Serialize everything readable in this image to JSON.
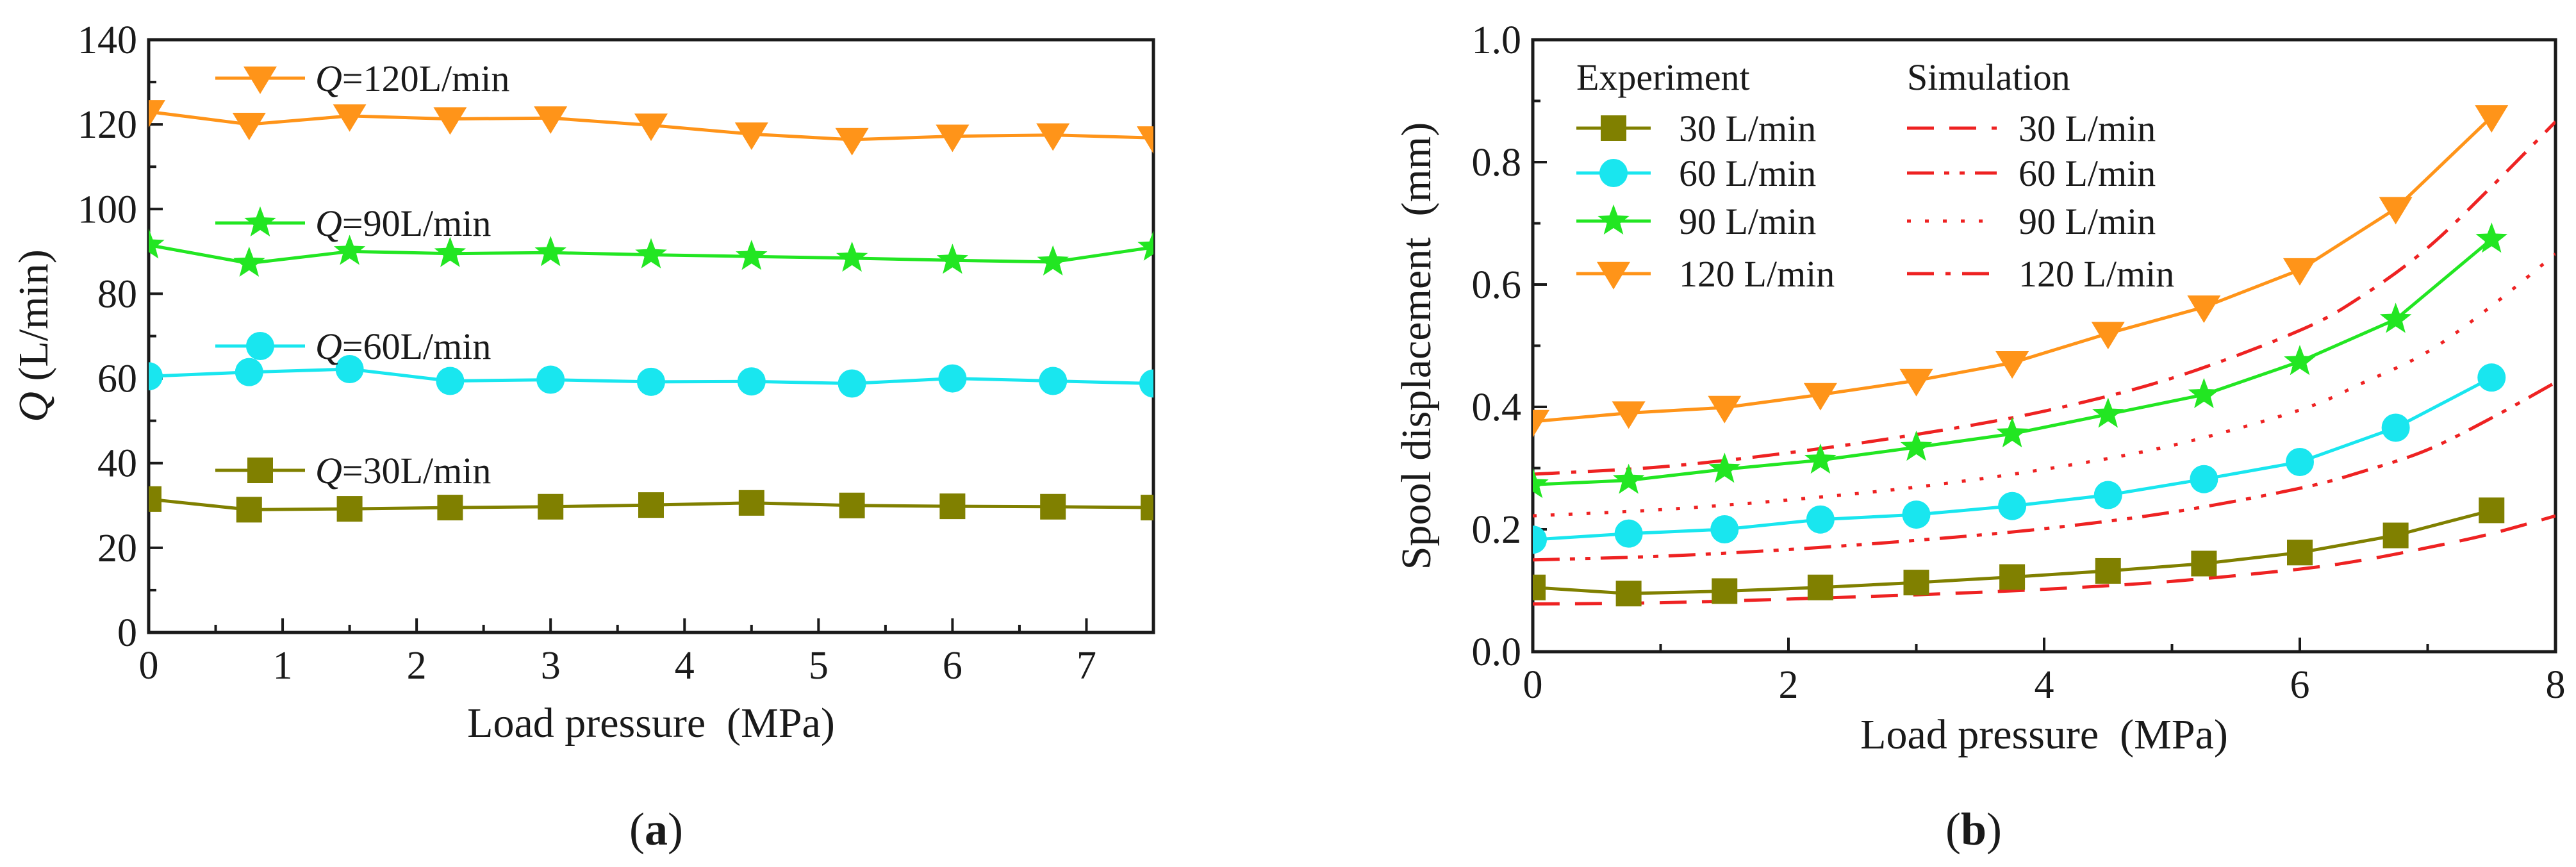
{
  "panel_labels": {
    "a": {
      "open": "(",
      "letter": "a",
      "close": ")"
    },
    "b": {
      "open": "(",
      "letter": "b",
      "close": ")"
    }
  },
  "colors": {
    "q30": "#808000",
    "q60": "#19e6ef",
    "q90": "#22e622",
    "q120": "#ff9419",
    "sim": "#ee2222",
    "axis": "#1a1a1a"
  },
  "chart_data": [
    {
      "id": "a",
      "type": "line",
      "title": "",
      "xlabel": "Load pressure (MPa)",
      "ylabel_italic": "Q",
      "ylabel_rest": " (L/min)",
      "xlim": [
        0,
        7.5
      ],
      "ylim": [
        0,
        140
      ],
      "xticks": [
        0,
        1,
        2,
        3,
        4,
        5,
        6,
        7
      ],
      "yticks": [
        0,
        20,
        40,
        60,
        80,
        100,
        120,
        140
      ],
      "minor_xticks": [
        0.5,
        1.5,
        2.5,
        3.5,
        4.5,
        5.5,
        6.5
      ],
      "minor_yticks": [
        10,
        30,
        50,
        70,
        90,
        110,
        130
      ],
      "series": [
        {
          "key": "q120",
          "name_italic": "Q",
          "name_rest": "=120L/min",
          "marker": "tri-down",
          "color_key": "q120",
          "x": [
            0,
            0.75,
            1.5,
            2.25,
            3,
            3.75,
            4.5,
            5.25,
            6,
            6.75,
            7.5
          ],
          "y": [
            123,
            120,
            122,
            121.3,
            121.5,
            119.8,
            117.7,
            116.4,
            117.2,
            117.5,
            116.8
          ]
        },
        {
          "key": "q90",
          "name_italic": "Q",
          "name_rest": "=90L/min",
          "marker": "star",
          "color_key": "q90",
          "x": [
            0,
            0.75,
            1.5,
            2.25,
            3,
            3.75,
            4.5,
            5.25,
            6,
            6.75,
            7.5
          ],
          "y": [
            91.5,
            87.2,
            90,
            89.5,
            89.7,
            89.2,
            88.8,
            88.4,
            87.9,
            87.5,
            91
          ]
        },
        {
          "key": "q60",
          "name_italic": "Q",
          "name_rest": "=60L/min",
          "marker": "circle",
          "color_key": "q60",
          "x": [
            0,
            0.75,
            1.5,
            2.25,
            3,
            3.75,
            4.5,
            5.25,
            6,
            6.75,
            7.5
          ],
          "y": [
            60.5,
            61.5,
            62.2,
            59.4,
            59.7,
            59.2,
            59.3,
            58.8,
            60,
            59.4,
            58.8
          ]
        },
        {
          "key": "q30",
          "name_italic": "Q",
          "name_rest": "=30L/min",
          "marker": "square",
          "color_key": "q30",
          "x": [
            0,
            0.75,
            1.5,
            2.25,
            3,
            3.75,
            4.5,
            5.25,
            6,
            6.75,
            7.5
          ],
          "y": [
            31.5,
            29,
            29.2,
            29.5,
            29.7,
            30.1,
            30.6,
            30,
            29.8,
            29.7,
            29.5
          ]
        }
      ]
    },
    {
      "id": "b",
      "type": "line",
      "title": "",
      "xlabel": "Load pressure (MPa)",
      "ylabel": "Spool displacement (mm)",
      "xlim": [
        0,
        8
      ],
      "ylim": [
        0,
        1.0
      ],
      "xticks": [
        0,
        2,
        4,
        6,
        8
      ],
      "xtick_labels": [
        "0",
        "2",
        "4",
        "6",
        "8"
      ],
      "yticks": [
        0,
        0.2,
        0.4,
        0.6,
        0.8,
        1.0
      ],
      "ytick_labels": [
        "0.0",
        "0.2",
        "0.4",
        "0.6",
        "0.8",
        "1.0"
      ],
      "minor_xticks": [
        1,
        3,
        5,
        7
      ],
      "minor_yticks": [
        0.1,
        0.3,
        0.5,
        0.7,
        0.9
      ],
      "legend_titles": {
        "experiment": "Experiment",
        "simulation": "Simulation"
      },
      "experiment": [
        {
          "key": "e30",
          "name": "30 L/min",
          "marker": "square",
          "color_key": "q30",
          "x": [
            0,
            0.75,
            1.5,
            2.25,
            3,
            3.75,
            4.5,
            5.25,
            6,
            6.75,
            7.5
          ],
          "y": [
            0.105,
            0.095,
            0.099,
            0.105,
            0.113,
            0.122,
            0.132,
            0.144,
            0.162,
            0.19,
            0.231
          ]
        },
        {
          "key": "e60",
          "name": "60 L/min",
          "marker": "circle",
          "color_key": "q60",
          "x": [
            0,
            0.75,
            1.5,
            2.25,
            3,
            3.75,
            4.5,
            5.25,
            6,
            6.75,
            7.5
          ],
          "y": [
            0.183,
            0.193,
            0.2,
            0.216,
            0.224,
            0.238,
            0.256,
            0.282,
            0.31,
            0.366,
            0.448
          ]
        },
        {
          "key": "e90",
          "name": "90 L/min",
          "marker": "star",
          "color_key": "q90",
          "x": [
            0,
            0.75,
            1.5,
            2.25,
            3,
            3.75,
            4.5,
            5.25,
            6,
            6.75,
            7.5
          ],
          "y": [
            0.273,
            0.28,
            0.298,
            0.313,
            0.334,
            0.356,
            0.388,
            0.42,
            0.474,
            0.543,
            0.674
          ]
        },
        {
          "key": "e120",
          "name": "120 L/min",
          "marker": "tri-down",
          "color_key": "q120",
          "x": [
            0,
            0.75,
            1.5,
            2.25,
            3,
            3.75,
            4.5,
            5.25,
            6,
            6.75,
            7.5
          ],
          "y": [
            0.376,
            0.39,
            0.399,
            0.42,
            0.443,
            0.472,
            0.52,
            0.563,
            0.624,
            0.724,
            0.874
          ]
        }
      ],
      "simulation": [
        {
          "key": "s30",
          "name": "30 L/min",
          "dash": "dash",
          "color_key": "sim",
          "x": [
            0,
            1,
            2,
            3,
            4,
            5,
            6,
            6.5,
            7,
            7.5,
            8
          ],
          "y": [
            0.078,
            0.08,
            0.086,
            0.093,
            0.102,
            0.115,
            0.135,
            0.15,
            0.17,
            0.193,
            0.222
          ]
        },
        {
          "key": "s60",
          "name": "60 L/min",
          "dash": "dash-dot-dot",
          "color_key": "sim",
          "x": [
            0,
            1,
            2,
            3,
            4,
            5,
            6,
            6.5,
            7,
            7.5,
            8
          ],
          "y": [
            0.15,
            0.156,
            0.167,
            0.182,
            0.201,
            0.228,
            0.267,
            0.295,
            0.33,
            0.382,
            0.44
          ]
        },
        {
          "key": "s90",
          "name": "90 L/min",
          "dash": "dot",
          "color_key": "sim",
          "x": [
            0,
            1,
            2,
            3,
            4,
            5,
            6,
            6.5,
            7,
            7.5,
            8
          ],
          "y": [
            0.222,
            0.232,
            0.248,
            0.269,
            0.298,
            0.337,
            0.395,
            0.44,
            0.49,
            0.565,
            0.65
          ]
        },
        {
          "key": "s120",
          "name": "120 L/min",
          "dash": "dash-dot",
          "color_key": "sim",
          "x": [
            0,
            1,
            2,
            3,
            4,
            5,
            6,
            6.5,
            7,
            7.5,
            8
          ],
          "y": [
            0.29,
            0.302,
            0.325,
            0.355,
            0.393,
            0.447,
            0.525,
            0.583,
            0.66,
            0.76,
            0.866
          ]
        }
      ]
    }
  ]
}
